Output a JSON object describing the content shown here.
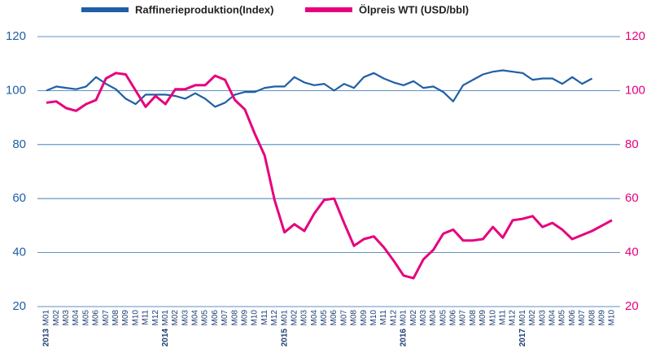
{
  "chart_data": {
    "type": "line",
    "categories": [
      "M01",
      "M02",
      "M03",
      "M04",
      "M05",
      "M06",
      "M07",
      "M08",
      "M09",
      "M10",
      "M11",
      "M12",
      "M01",
      "M02",
      "M03",
      "M04",
      "M05",
      "M06",
      "M07",
      "M08",
      "M09",
      "M10",
      "M11",
      "M12",
      "M01",
      "M02",
      "M03",
      "M04",
      "M05",
      "M06",
      "M07",
      "M08",
      "M09",
      "M10",
      "M11",
      "M12",
      "M01",
      "M02",
      "M03",
      "M04",
      "M05",
      "M06",
      "M07",
      "M08",
      "M09",
      "M10",
      "M11",
      "M12",
      "M01",
      "M02",
      "M03",
      "M04",
      "M05",
      "M06",
      "M07",
      "M08",
      "M09",
      "M10"
    ],
    "category_groups": [
      "2013",
      "2014",
      "2015",
      "2016",
      "2017"
    ],
    "series": [
      {
        "name": "Raffinerieproduktion(Index)",
        "color": "#1f5fa6",
        "values": [
          100,
          101.5,
          101,
          100.5,
          101.5,
          105,
          102.5,
          100.5,
          97,
          95,
          98.5,
          98.5,
          98.5,
          98,
          97,
          99,
          97,
          94,
          95.5,
          98.5,
          99.5,
          99.5,
          101,
          101.5,
          101.5,
          105,
          103,
          102,
          102.5,
          100,
          102.5,
          101,
          105,
          106.5,
          104.5,
          103,
          102,
          103.5,
          101,
          101.5,
          99.5,
          96,
          102,
          104,
          106,
          107,
          107.5,
          107,
          106.5,
          104,
          104.5,
          104.5,
          102.5,
          105,
          102.5,
          104.5,
          null,
          null
        ]
      },
      {
        "name": "Ölpreis WTI (USD/bbl)",
        "color": "#e6007e",
        "axis": "y2",
        "values": [
          95.5,
          96,
          93.5,
          92.5,
          95,
          96.5,
          104.5,
          106.5,
          106,
          100,
          94,
          98,
          95,
          100.5,
          100.5,
          102,
          102,
          105.5,
          104,
          96.5,
          93,
          84,
          76,
          59.5,
          47.5,
          50.5,
          48,
          54.5,
          59.5,
          60,
          51,
          42.5,
          45,
          46,
          42,
          37,
          31.5,
          30.5,
          37.5,
          41,
          47,
          48.5,
          44.5,
          44.5,
          45,
          49.5,
          45.5,
          52,
          52.5,
          53.5,
          49.5,
          51,
          48.5,
          45,
          46.5,
          48,
          50,
          52
        ]
      }
    ],
    "ylim": [
      20,
      120
    ],
    "yticks": [
      20,
      40,
      60,
      80,
      100,
      120
    ],
    "y2lim": [
      20,
      120
    ],
    "y2ticks": [
      20,
      40,
      60,
      80,
      100,
      120
    ],
    "grid": true,
    "legend": "top"
  }
}
